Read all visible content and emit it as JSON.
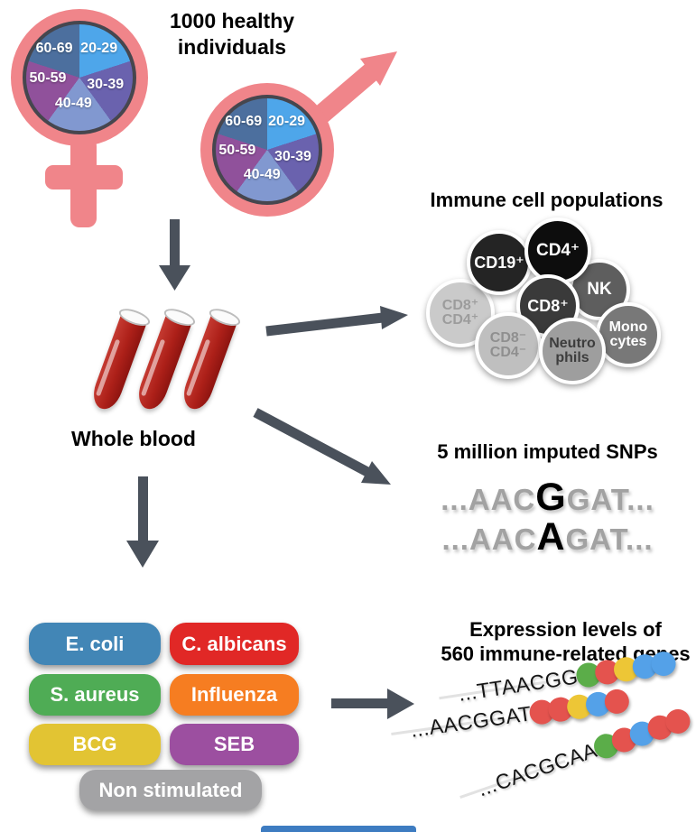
{
  "cohort": {
    "title": "1000 healthy\nindividuals",
    "age_groups": [
      "20-29",
      "30-39",
      "40-49",
      "50-59",
      "60-69"
    ],
    "symbol_color": "#F0858A",
    "pie_ring_color": "#46464E",
    "slice_colors": [
      "#4EA6EA",
      "#6A62AE",
      "#8198D0",
      "#90519B",
      "#4C6F9E"
    ]
  },
  "blood": {
    "label": "Whole blood",
    "tube_color": "#AD2019",
    "tube_count": 3
  },
  "immune_cells": {
    "title": "Immune cell populations",
    "cells": [
      {
        "label": "CD8⁺\nCD4⁺",
        "fill": "#CACACA",
        "text": "#9C9C9C"
      },
      {
        "label": "CD19⁺",
        "fill": "#242424",
        "text": "#FFFFFF"
      },
      {
        "label": "NK",
        "fill": "#5E5E5E",
        "text": "#FFFFFF"
      },
      {
        "label": "CD4⁺",
        "fill": "#0D0D0D",
        "text": "#FFFFFF"
      },
      {
        "label": "CD8⁺",
        "fill": "#3A3A3A",
        "text": "#FFFFFF"
      },
      {
        "label": "Mono\ncytes",
        "fill": "#787878",
        "text": "#FFFFFF"
      },
      {
        "label": "CD8⁻\nCD4⁻",
        "fill": "#BFBFBF",
        "text": "#8F8F8F"
      },
      {
        "label": "Neutro\nphils",
        "fill": "#9E9E9E",
        "text": "#3D3D3D"
      }
    ]
  },
  "snps": {
    "title": "5 million imputed SNPs",
    "sequences": [
      {
        "prefix": "...AAC",
        "variant": "G",
        "suffix": "GAT..."
      },
      {
        "prefix": "...AAC",
        "variant": "A",
        "suffix": "GAT..."
      }
    ]
  },
  "stimuli": {
    "items": [
      {
        "label": "E. coli",
        "color": "#4286B6"
      },
      {
        "label": "C. albicans",
        "color": "#E12826"
      },
      {
        "label": "S. aureus",
        "color": "#4FAC55"
      },
      {
        "label": "Influenza",
        "color": "#F67D21"
      },
      {
        "label": "BCG",
        "color": "#E2C433"
      },
      {
        "label": "SEB",
        "color": "#9C4FA0"
      },
      {
        "label": "Non stimulated",
        "color": "#A3A3A5"
      }
    ]
  },
  "expression": {
    "title": "Expression levels of\n560 immune-related genes",
    "dot_colors": {
      "green": "#5BAD49",
      "red": "#E4534E",
      "yellow": "#EDC636",
      "blue": "#54A1E8"
    },
    "rows": [
      {
        "sequence": "...TTAACGG",
        "dots": [
          "green",
          "red",
          "yellow",
          "blue",
          "blue"
        ]
      },
      {
        "sequence": "...AACGGAT",
        "dots": [
          "red",
          "red",
          "yellow",
          "blue",
          "red"
        ]
      },
      {
        "sequence": "...CACGCAA",
        "dots": [
          "green",
          "red",
          "blue",
          "red",
          "red"
        ]
      }
    ]
  },
  "arrow_color": "#4A515B",
  "bottom_fragment": {
    "color": "#3E7CC1"
  },
  "icons": {
    "female-symbol": "css circle + cross",
    "male-symbol": "css circle + svg arrow",
    "blood-tube": "css test-tube shape",
    "flow-arrow": "svg shaft + triangle head"
  }
}
